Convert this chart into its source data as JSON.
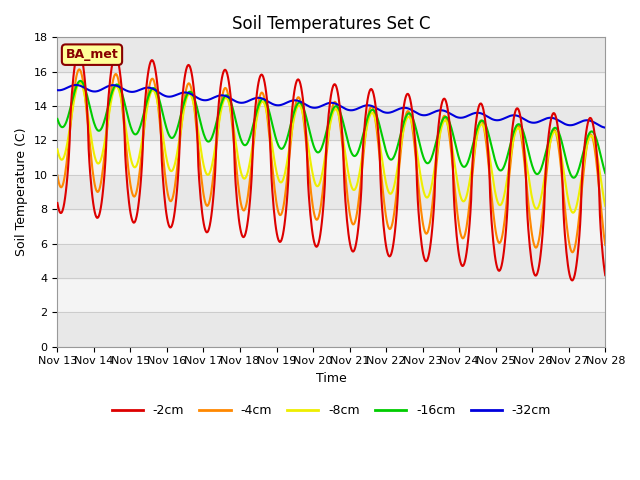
{
  "title": "Soil Temperatures Set C",
  "xlabel": "Time",
  "ylabel": "Soil Temperature (C)",
  "ylim": [
    0,
    18
  ],
  "yticks": [
    0,
    2,
    4,
    6,
    8,
    10,
    12,
    14,
    16,
    18
  ],
  "x_tick_labels": [
    "Nov 13",
    "Nov 14",
    "Nov 15",
    "Nov 16",
    "Nov 17",
    "Nov 18",
    "Nov 19",
    "Nov 20",
    "Nov 21",
    "Nov 22",
    "Nov 23",
    "Nov 24",
    "Nov 25",
    "Nov 26",
    "Nov 27",
    "Nov 28"
  ],
  "series_colors": {
    "-2cm": "#dd0000",
    "-4cm": "#ff8800",
    "-8cm": "#eeee00",
    "-16cm": "#00cc00",
    "-32cm": "#0000dd"
  },
  "annotation_text": "BA_met",
  "annotation_color": "#880000",
  "annotation_bg": "#ffff99",
  "background_color": "#ffffff",
  "title_fontsize": 12,
  "axis_label_fontsize": 9,
  "tick_fontsize": 8,
  "band_colors": [
    "#e8e8e8",
    "#f4f4f4"
  ],
  "low_band_color": "#ebebeb"
}
